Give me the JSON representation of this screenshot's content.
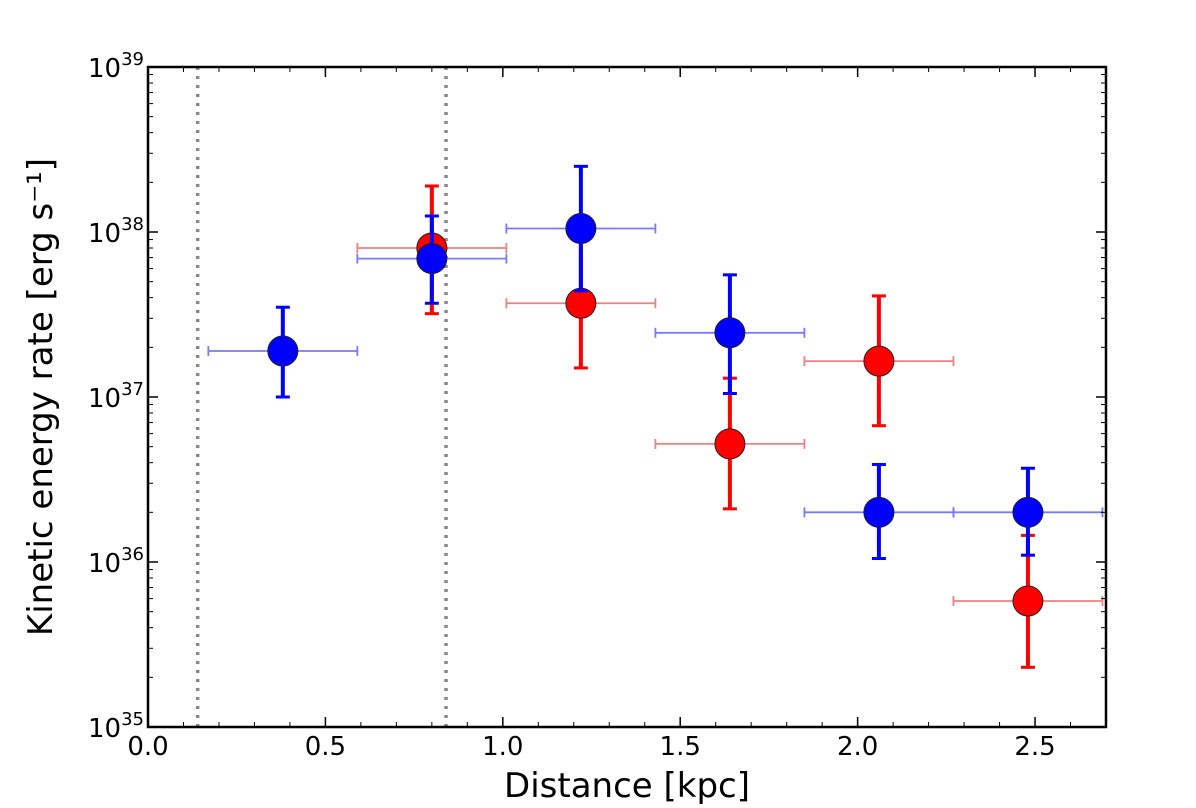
{
  "chart_data": {
    "type": "scatter",
    "title": "",
    "xlabel": "Distance [kpc]",
    "ylabel": "Kinetic energy rate [erg s⁻¹]",
    "xlim": [
      0.0,
      2.7
    ],
    "ylim": [
      1e+35,
      1e+39
    ],
    "yscale": "log",
    "x_ticks": [
      "0.0",
      "0.5",
      "1.0",
      "1.5",
      "2.0",
      "2.5"
    ],
    "y_ticks": [
      {
        "base": "10",
        "exp": "35"
      },
      {
        "base": "10",
        "exp": "36"
      },
      {
        "base": "10",
        "exp": "37"
      },
      {
        "base": "10",
        "exp": "38"
      },
      {
        "base": "10",
        "exp": "39"
      }
    ],
    "vlines": [
      0.14,
      0.84
    ],
    "vline_color": "#888888",
    "series": [
      {
        "color": "#ff0000",
        "errbar_color": "#ff0000",
        "xerr_color": "#f08080",
        "points": [
          {
            "x": 0.8,
            "y": 8e+37,
            "xlo": 0.59,
            "xhi": 1.01,
            "ylo": 3.2e+37,
            "yhi": 1.9e+38
          },
          {
            "x": 1.22,
            "y": 3.7e+37,
            "xlo": 1.01,
            "xhi": 1.43,
            "ylo": 1.5e+37,
            "yhi": 1e+38
          },
          {
            "x": 1.64,
            "y": 5.2e+36,
            "xlo": 1.43,
            "xhi": 1.85,
            "ylo": 2.1e+36,
            "yhi": 1.3e+37
          },
          {
            "x": 2.06,
            "y": 1.65e+37,
            "xlo": 1.85,
            "xhi": 2.27,
            "ylo": 6.7e+36,
            "yhi": 4.1e+37
          },
          {
            "x": 2.48,
            "y": 5.8e+35,
            "xlo": 2.27,
            "xhi": 2.69,
            "ylo": 2.3e+35,
            "yhi": 1.45e+36
          }
        ]
      },
      {
        "color": "#0000ff",
        "errbar_color": "#0000ff",
        "xerr_color": "#7a7aff",
        "points": [
          {
            "x": 0.38,
            "y": 1.9e+37,
            "xlo": 0.17,
            "xhi": 0.59,
            "ylo": 1e+37,
            "yhi": 3.5e+37
          },
          {
            "x": 0.8,
            "y": 6.9e+37,
            "xlo": 0.59,
            "xhi": 1.01,
            "ylo": 3.7e+37,
            "yhi": 1.25e+38
          },
          {
            "x": 1.22,
            "y": 1.05e+38,
            "xlo": 1.01,
            "xhi": 1.43,
            "ylo": 4.4e+37,
            "yhi": 2.5e+38
          },
          {
            "x": 1.64,
            "y": 2.45e+37,
            "xlo": 1.43,
            "xhi": 1.85,
            "ylo": 1.05e+37,
            "yhi": 5.5e+37
          },
          {
            "x": 2.06,
            "y": 2e+36,
            "xlo": 1.85,
            "xhi": 2.27,
            "ylo": 1.05e+36,
            "yhi": 3.9e+36
          },
          {
            "x": 2.48,
            "y": 2e+36,
            "xlo": 2.27,
            "xhi": 2.69,
            "ylo": 1.1e+36,
            "yhi": 3.7e+36
          }
        ]
      }
    ]
  }
}
